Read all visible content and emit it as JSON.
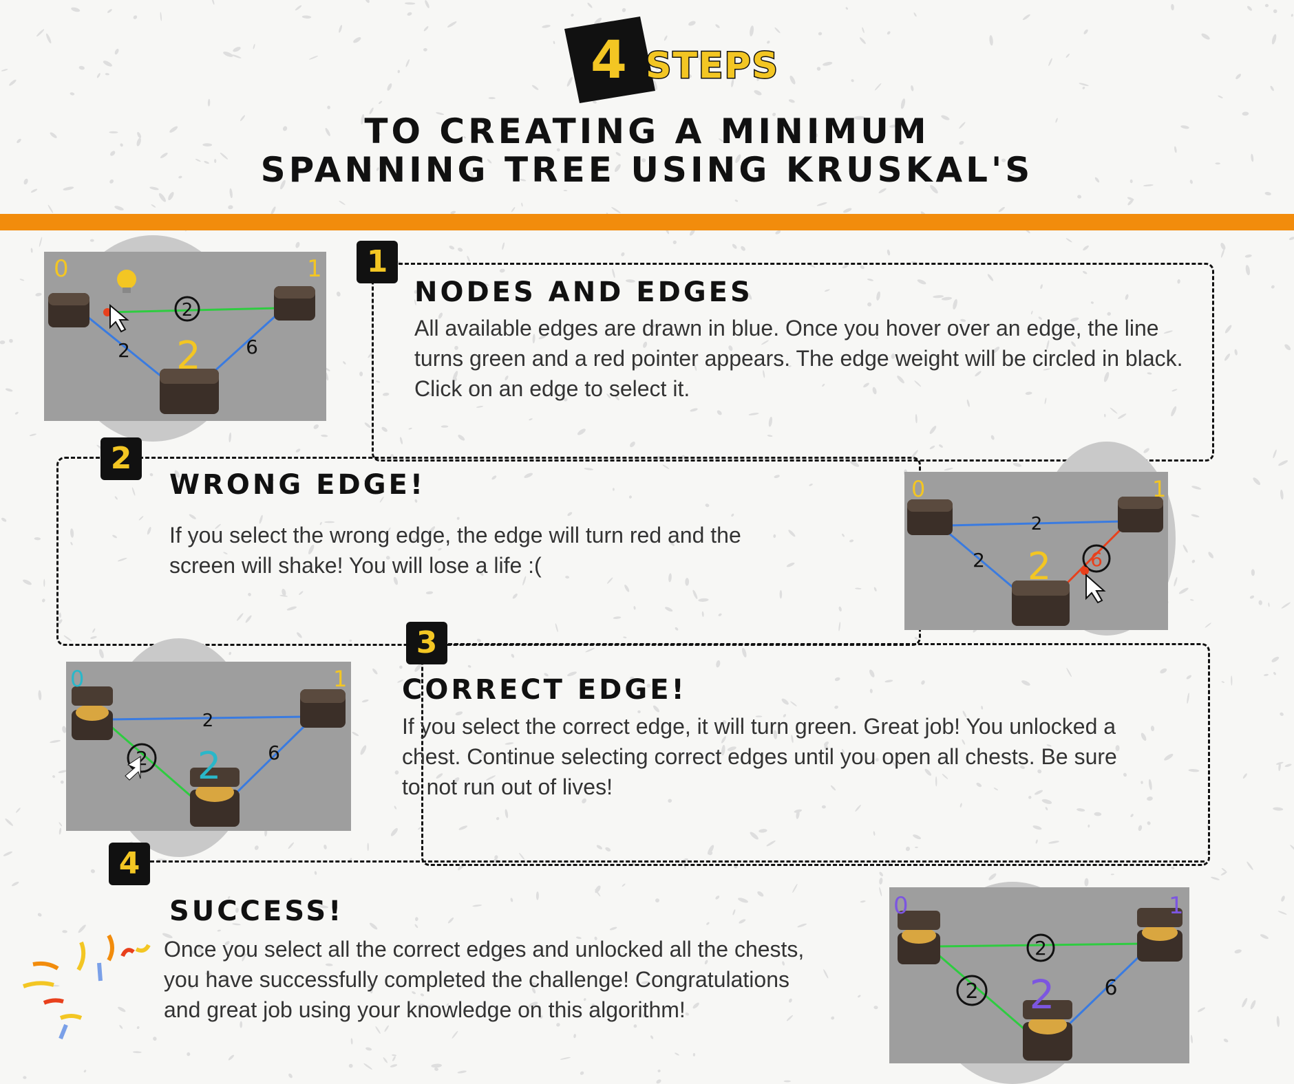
{
  "header": {
    "badge_number": "4",
    "badge_word": "STEPS",
    "title_line1": "TO CREATING A MINIMUM",
    "title_line2": "SPANNING TREE USING KRUSKAL'S"
  },
  "colors": {
    "accent_orange": "#f28c0c",
    "badge_yellow": "#f3c623",
    "edge_blue": "#3a7be0",
    "edge_green": "#2ecc40",
    "edge_red": "#e8401c"
  },
  "steps": [
    {
      "number": "1",
      "heading": "NODES AND EDGES",
      "text": "All available edges are drawn in blue. Once you hover over an edge, the line turns green and a red pointer appears. The edge weight will be circled in black. Click on an edge to select it.",
      "shot": {
        "node_labels": [
          "0",
          "1",
          "2"
        ],
        "weights": [
          "2",
          "2",
          "6"
        ]
      }
    },
    {
      "number": "2",
      "heading": "WRONG EDGE!",
      "text": "If you select the wrong edge, the edge will turn red and the screen will shake! You will lose a life :(",
      "shot": {
        "node_labels": [
          "0",
          "1",
          "2"
        ],
        "weights": [
          "2",
          "2",
          "6"
        ]
      }
    },
    {
      "number": "3",
      "heading": "CORRECT EDGE!",
      "text": "If you select the correct edge, it will turn green. Great job! You unlocked a chest. Continue selecting correct edges until you open all chests. Be sure to not run out of lives!",
      "shot": {
        "node_labels": [
          "0",
          "1",
          "2"
        ],
        "weights": [
          "2",
          "2",
          "6"
        ]
      }
    },
    {
      "number": "4",
      "heading": "SUCCESS!",
      "text": "Once you select all the correct edges and unlocked all the chests, you have successfully completed the challenge! Congratulations and great job using your knowledge on this algorithm!",
      "shot": {
        "node_labels": [
          "0",
          "1",
          "2"
        ],
        "weights": [
          "2",
          "2",
          "6"
        ]
      }
    }
  ]
}
